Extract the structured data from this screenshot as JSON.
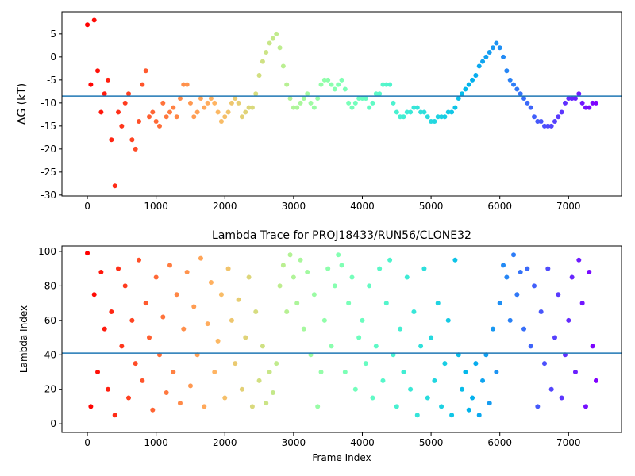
{
  "chart_data": [
    {
      "type": "scatter",
      "ylabel": "ΔG (kT)",
      "colormap": "rainbow_r",
      "xlim": [
        -370,
        7770
      ],
      "ylim": [
        -30.2,
        9.8
      ],
      "xticks": [
        0,
        1000,
        2000,
        3000,
        4000,
        5000,
        6000,
        7000
      ],
      "yticks": [
        -30,
        -25,
        -20,
        -15,
        -10,
        -5,
        0,
        5
      ],
      "hline": -8.5,
      "hline_color": "#1f77b4",
      "x": [
        0,
        50,
        100,
        150,
        200,
        250,
        300,
        350,
        400,
        450,
        500,
        550,
        600,
        650,
        700,
        750,
        800,
        850,
        900,
        950,
        1000,
        1050,
        1100,
        1150,
        1200,
        1250,
        1300,
        1350,
        1400,
        1450,
        1500,
        1550,
        1600,
        1650,
        1700,
        1750,
        1800,
        1850,
        1900,
        1950,
        2000,
        2050,
        2100,
        2150,
        2200,
        2250,
        2300,
        2350,
        2400,
        2450,
        2500,
        2550,
        2600,
        2650,
        2700,
        2750,
        2800,
        2850,
        2900,
        2950,
        3000,
        3050,
        3100,
        3150,
        3200,
        3250,
        3300,
        3350,
        3400,
        3450,
        3500,
        3550,
        3600,
        3650,
        3700,
        3750,
        3800,
        3850,
        3900,
        3950,
        4000,
        4050,
        4100,
        4150,
        4200,
        4250,
        4300,
        4350,
        4400,
        4450,
        4500,
        4550,
        4600,
        4650,
        4700,
        4750,
        4800,
        4850,
        4900,
        4950,
        5000,
        5050,
        5100,
        5150,
        5200,
        5250,
        5300,
        5350,
        5400,
        5450,
        5500,
        5550,
        5600,
        5650,
        5700,
        5750,
        5800,
        5850,
        5900,
        5950,
        6000,
        6050,
        6100,
        6150,
        6200,
        6250,
        6300,
        6350,
        6400,
        6450,
        6500,
        6550,
        6600,
        6650,
        6700,
        6750,
        6800,
        6850,
        6900,
        6950,
        7000,
        7050,
        7100,
        7150,
        7200,
        7250,
        7300,
        7350,
        7400
      ],
      "values": [
        7,
        -6,
        8,
        -3,
        -12,
        -8,
        -5,
        -18,
        -28,
        -12,
        -15,
        -10,
        -8,
        -18,
        -20,
        -14,
        -6,
        -3,
        -13,
        -12,
        -14,
        -15,
        -10,
        -13,
        -12,
        -11,
        -13,
        -9,
        -6,
        -6,
        -10,
        -13,
        -12,
        -9,
        -11,
        -10,
        -9,
        -10,
        -12,
        -14,
        -13,
        -12,
        -10,
        -9,
        -10,
        -13,
        -12,
        -11,
        -11,
        -8,
        -4,
        -1,
        1,
        3,
        4,
        5,
        2,
        -2,
        -6,
        -9,
        -11,
        -11,
        -10,
        -9,
        -8,
        -10,
        -11,
        -9,
        -6,
        -5,
        -5,
        -6,
        -7,
        -6,
        -5,
        -7,
        -10,
        -11,
        -10,
        -9,
        -9,
        -9,
        -11,
        -10,
        -8,
        -8,
        -6,
        -6,
        -6,
        -10,
        -12,
        -13,
        -13,
        -12,
        -12,
        -11,
        -11,
        -12,
        -12,
        -13,
        -14,
        -14,
        -13,
        -13,
        -13,
        -12,
        -12,
        -11,
        -9,
        -8,
        -7,
        -6,
        -5,
        -4,
        -2,
        -1,
        0,
        1,
        2,
        3,
        2,
        0,
        -3,
        -5,
        -6,
        -7,
        -8,
        -9,
        -10,
        -11,
        -13,
        -14,
        -14,
        -15,
        -15,
        -15,
        -14,
        -13,
        -12,
        -10,
        -9,
        -9,
        -9,
        -8,
        -10,
        -11,
        -11,
        -10,
        -10
      ]
    },
    {
      "type": "scatter",
      "title": "Lambda Trace for PROJ18433/RUN56/CLONE32",
      "xlabel": "Frame Index",
      "ylabel": "Lambda Index",
      "colormap": "rainbow_r",
      "xlim": [
        -370,
        7770
      ],
      "ylim": [
        -5,
        103.2
      ],
      "xticks": [
        0,
        1000,
        2000,
        3000,
        4000,
        5000,
        6000,
        7000
      ],
      "yticks": [
        0,
        20,
        40,
        60,
        80,
        100
      ],
      "hline": 41,
      "hline_color": "#1f77b4",
      "x": [
        0,
        50,
        100,
        150,
        200,
        250,
        300,
        350,
        400,
        450,
        500,
        550,
        600,
        650,
        700,
        750,
        800,
        850,
        900,
        950,
        1000,
        1050,
        1100,
        1150,
        1200,
        1250,
        1300,
        1350,
        1400,
        1450,
        1500,
        1550,
        1600,
        1650,
        1700,
        1750,
        1800,
        1850,
        1900,
        1950,
        2000,
        2050,
        2100,
        2150,
        2200,
        2250,
        2300,
        2350,
        2400,
        2450,
        2500,
        2550,
        2600,
        2650,
        2700,
        2750,
        2800,
        2850,
        2900,
        2950,
        3000,
        3050,
        3100,
        3150,
        3200,
        3250,
        3300,
        3350,
        3400,
        3450,
        3500,
        3550,
        3600,
        3650,
        3700,
        3750,
        3800,
        3850,
        3900,
        3950,
        4000,
        4050,
        4100,
        4150,
        4200,
        4250,
        4300,
        4350,
        4400,
        4450,
        4500,
        4550,
        4600,
        4650,
        4700,
        4750,
        4800,
        4850,
        4900,
        4950,
        5000,
        5050,
        5100,
        5150,
        5200,
        5250,
        5300,
        5350,
        5400,
        5450,
        5500,
        5550,
        5600,
        5650,
        5700,
        5750,
        5800,
        5850,
        5900,
        5950,
        6000,
        6050,
        6100,
        6150,
        6200,
        6250,
        6300,
        6350,
        6400,
        6450,
        6500,
        6550,
        6600,
        6650,
        6700,
        6750,
        6800,
        6850,
        6900,
        6950,
        7000,
        7050,
        7100,
        7150,
        7200,
        7250,
        7300,
        7350,
        7400
      ],
      "values": [
        99,
        10,
        75,
        30,
        88,
        55,
        20,
        65,
        5,
        90,
        45,
        80,
        15,
        60,
        35,
        95,
        25,
        70,
        50,
        8,
        85,
        40,
        62,
        18,
        92,
        30,
        75,
        12,
        55,
        88,
        22,
        68,
        40,
        96,
        10,
        58,
        82,
        30,
        48,
        75,
        15,
        90,
        60,
        35,
        72,
        20,
        50,
        85,
        10,
        65,
        25,
        45,
        12,
        30,
        18,
        35,
        80,
        92,
        65,
        98,
        85,
        70,
        95,
        55,
        88,
        40,
        75,
        10,
        30,
        60,
        90,
        45,
        80,
        98,
        92,
        30,
        70,
        85,
        20,
        50,
        60,
        35,
        80,
        15,
        45,
        90,
        25,
        70,
        95,
        40,
        10,
        55,
        30,
        85,
        20,
        65,
        5,
        45,
        90,
        15,
        50,
        25,
        70,
        10,
        35,
        60,
        5,
        95,
        40,
        20,
        30,
        8,
        15,
        35,
        5,
        25,
        40,
        12,
        55,
        30,
        70,
        92,
        85,
        60,
        98,
        75,
        88,
        55,
        90,
        45,
        80,
        10,
        65,
        35,
        90,
        20,
        50,
        75,
        15,
        40,
        60,
        85,
        30,
        95,
        70,
        10,
        88,
        45,
        25
      ]
    }
  ]
}
